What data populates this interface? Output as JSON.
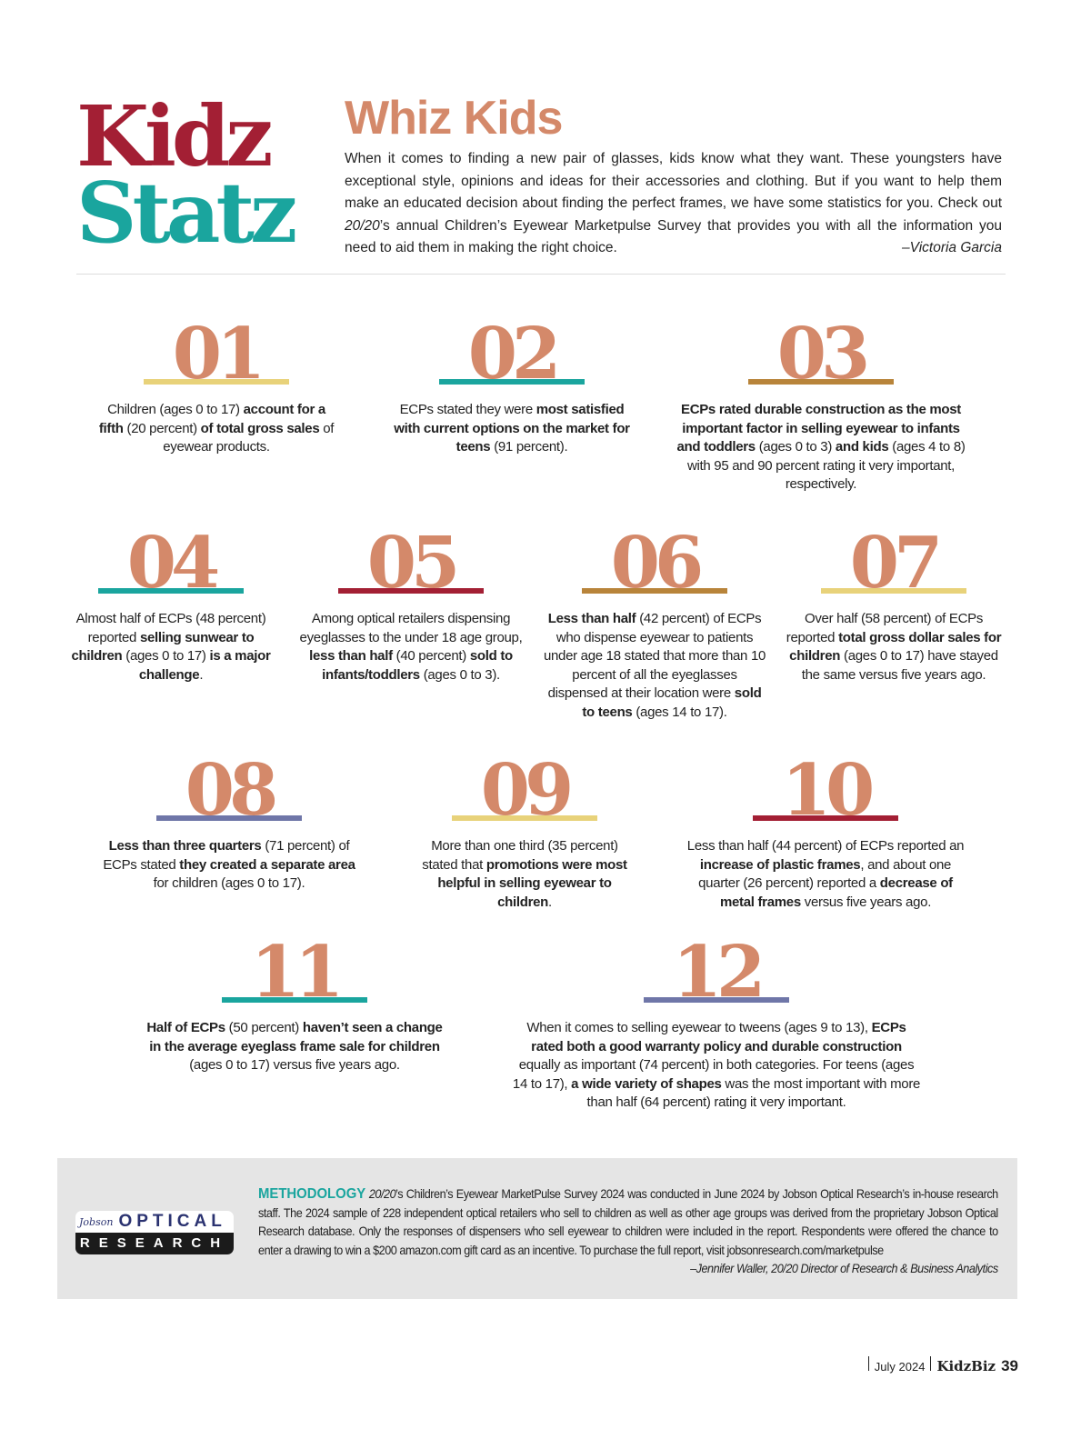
{
  "header": {
    "logo_line1": "Kidz",
    "logo_line2": "Statz",
    "title": "Whiz Kids",
    "intro_before_italic": "When it comes to finding a new pair of glasses, kids know what they want. These youngsters have exceptional style, opinions and ideas for their accessories and clothing. But if you want to help them make an educated decision about finding the perfect frames, we have some statistics for you. Check out ",
    "intro_italic": "20/20",
    "intro_after_italic": "’s annual Children’s Eyewear Marketpulse Survey that provides you with all the information you need to aid them in making the right choice.",
    "author": "–Victoria Garcia"
  },
  "colors": {
    "number": "#d4896a",
    "red": "#a31f34",
    "teal": "#1aa59e",
    "yellow": "#e8d27a",
    "brown": "#b8843a",
    "blue": "#6f76a8"
  },
  "stats": [
    {
      "number": "01",
      "bar_color": "#e8d27a",
      "segments": [
        [
          "Children (ages 0 to 17) ",
          0
        ],
        [
          "account for a fifth",
          1
        ],
        [
          " (20 percent) ",
          0
        ],
        [
          "of total gross sales",
          1
        ],
        [
          " of eyewear products.",
          0
        ]
      ]
    },
    {
      "number": "02",
      "bar_color": "#1aa59e",
      "segments": [
        [
          "ECPs stated they were ",
          0
        ],
        [
          "most satisfied with current options on the market for teens",
          1
        ],
        [
          " (91 percent).",
          0
        ]
      ]
    },
    {
      "number": "03",
      "bar_color": "#b8843a",
      "segments": [
        [
          "ECPs rated durable construction as the most important factor in selling eyewear to infants and toddlers",
          1
        ],
        [
          " (ages 0 to 3) ",
          0
        ],
        [
          "and kids",
          1
        ],
        [
          " (ages 4 to 8) with 95 and 90 percent rating it very important, respectively.",
          0
        ]
      ]
    },
    {
      "number": "04",
      "bar_color": "#1aa59e",
      "segments": [
        [
          "Almost half of ECPs (48 percent) reported ",
          0
        ],
        [
          "selling sunwear to children",
          1
        ],
        [
          " (ages 0 to 17) ",
          0
        ],
        [
          "is a major challenge",
          1
        ],
        [
          ".",
          0
        ]
      ]
    },
    {
      "number": "05",
      "bar_color": "#a31f34",
      "segments": [
        [
          "Among optical retailers dispensing eyeglasses to the under 18 age group, ",
          0
        ],
        [
          "less than half",
          1
        ],
        [
          " (40 percent) ",
          0
        ],
        [
          "sold to infants/toddlers",
          1
        ],
        [
          " (ages 0 to 3).",
          0
        ]
      ]
    },
    {
      "number": "06",
      "bar_color": "#b8843a",
      "segments": [
        [
          "Less than half",
          1
        ],
        [
          " (42 percent) of ECPs who dispense eyewear to patients under age 18 stated that more than 10 percent of all the eyeglasses dispensed at their location were ",
          0
        ],
        [
          "sold to teens",
          1
        ],
        [
          " (ages 14 to 17).",
          0
        ]
      ]
    },
    {
      "number": "07",
      "bar_color": "#e8d27a",
      "segments": [
        [
          "Over half (58 percent) of ECPs reported ",
          0
        ],
        [
          "total gross dollar sales for children",
          1
        ],
        [
          " (ages 0 to 17) have stayed the same versus five years ago.",
          0
        ]
      ]
    },
    {
      "number": "08",
      "bar_color": "#6f76a8",
      "segments": [
        [
          "Less than three quarters",
          1
        ],
        [
          " (71 percent) of ECPs stated ",
          0
        ],
        [
          "they created a separate area",
          1
        ],
        [
          " for children (ages 0 to 17).",
          0
        ]
      ]
    },
    {
      "number": "09",
      "bar_color": "#e8d27a",
      "segments": [
        [
          "More than one third (35 percent) stated that ",
          0
        ],
        [
          "promotions were most helpful in selling eyewear to children",
          1
        ],
        [
          ".",
          0
        ]
      ]
    },
    {
      "number": "10",
      "bar_color": "#a31f34",
      "segments": [
        [
          "Less than half (44 percent) of ECPs reported an ",
          0
        ],
        [
          "increase of plastic frames",
          1
        ],
        [
          ", and about one quarter (26 percent) reported a ",
          0
        ],
        [
          "decrease of metal frames",
          1
        ],
        [
          " versus five years ago.",
          0
        ]
      ]
    },
    {
      "number": "11",
      "bar_color": "#1aa59e",
      "segments": [
        [
          "Half of ECPs",
          1
        ],
        [
          " (50 percent) ",
          0
        ],
        [
          "haven’t seen a change in the average eyeglass frame sale for children",
          1
        ],
        [
          " (ages 0 to 17) versus five years ago.",
          0
        ]
      ]
    },
    {
      "number": "12",
      "bar_color": "#6f76a8",
      "segments": [
        [
          "When it comes to selling eyewear to tweens (ages 9 to 13), ",
          0
        ],
        [
          "ECPs rated both a good warranty policy and durable construction",
          1
        ],
        [
          " equally as important (74 percent) in both categories. For teens (ages 14 to 17), ",
          0
        ],
        [
          "a wide variety of shapes",
          1
        ],
        [
          " was the most important with more than half (64 percent) rating it very important.",
          0
        ]
      ]
    }
  ],
  "methodology": {
    "logo_top_small": "Jobson",
    "logo_top": "OPTICAL",
    "logo_bottom": "RESEARCH",
    "heading": "METHODOLOGY",
    "italic_lead": "20/20",
    "body": "’s Children’s Eyewear MarketPulse Survey 2024 was conducted in June 2024 by Jobson Optical Research’s in-house research staff. The 2024 sample of 228 independent optical retailers who sell to children as well as other age groups was derived from the proprietary Jobson Optical Research database. Only the responses of dispensers who sell eyewear to children were included in the report. Respondents were offered the chance to enter a drawing to win a $200 amazon.com gift card as an incentive. To purchase the full report, visit jobsonresearch.com/marketpulse",
    "signature": "–Jennifer Waller, 20/20 Director of Research & Business Analytics"
  },
  "footer": {
    "date": "July 2024",
    "magazine": "KidzBiz",
    "page": "39"
  }
}
